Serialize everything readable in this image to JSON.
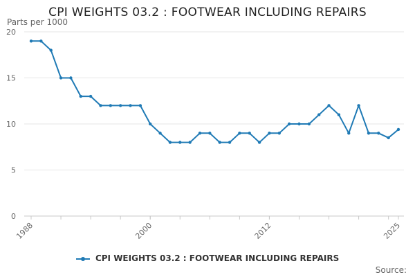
{
  "chart_data": {
    "type": "line",
    "title": "CPI WEIGHTS 03.2 : FOOTWEAR INCLUDING REPAIRS",
    "y_unit_label": "Parts per 1000",
    "x_range": [
      1988,
      2025
    ],
    "ylim": [
      0,
      20
    ],
    "y_ticks": [
      "0",
      "5",
      "10",
      "15",
      "20"
    ],
    "x_tick_labels": [
      "1988",
      "2000",
      "2012",
      "2025"
    ],
    "grid": true,
    "legend_position": "bottom",
    "series": [
      {
        "name": "CPI WEIGHTS 03.2 : FOOTWEAR INCLUDING REPAIRS",
        "color": "#1f7ab5",
        "x": [
          1988,
          1989,
          1990,
          1991,
          1992,
          1993,
          1994,
          1995,
          1996,
          1997,
          1998,
          1999,
          2000,
          2001,
          2002,
          2003,
          2004,
          2005,
          2006,
          2007,
          2008,
          2009,
          2010,
          2011,
          2012,
          2013,
          2014,
          2015,
          2016,
          2017,
          2018,
          2019,
          2020,
          2021,
          2022,
          2023,
          2024,
          2025
        ],
        "values": [
          19,
          19,
          18,
          15,
          15,
          13,
          13,
          12,
          12,
          12,
          12,
          12,
          10,
          9,
          8,
          8,
          8,
          9,
          9,
          8,
          8,
          9,
          9,
          8,
          9,
          9,
          10,
          10,
          10,
          11,
          12,
          11,
          9,
          12,
          9,
          9,
          8.5,
          9.4
        ]
      }
    ]
  },
  "source_label": "Source:"
}
